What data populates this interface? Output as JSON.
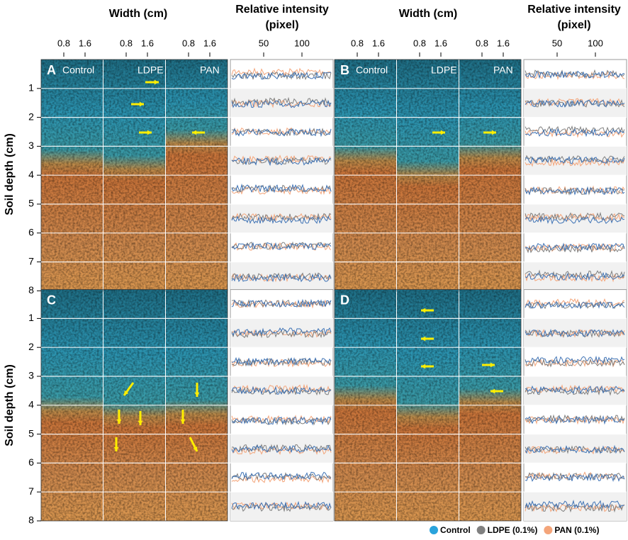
{
  "header": {
    "width_label": "Width (cm)",
    "intensity_label": [
      "Relative intensity",
      "(pixel)"
    ]
  },
  "width_ticks": [
    0.8,
    1.6
  ],
  "intensity_ticks": [
    50,
    100
  ],
  "depth_axis": {
    "label": "Soil depth (cm)",
    "ticks": [
      1,
      2,
      3,
      4,
      5,
      6,
      7,
      8
    ]
  },
  "panels": [
    {
      "label": "A",
      "columns": [
        "Control",
        "LDPE",
        "PAN"
      ]
    },
    {
      "label": "B",
      "columns": [
        "Control",
        "LDPE",
        "PAN"
      ]
    },
    {
      "label": "C"
    },
    {
      "label": "D"
    }
  ],
  "legend": [
    {
      "name": "Control",
      "color": "#29a3dc"
    },
    {
      "name": "LDPE (0.1%)",
      "color": "#808080"
    },
    {
      "name": "PAN (0.1%)",
      "color": "#f4a57a"
    }
  ]
}
